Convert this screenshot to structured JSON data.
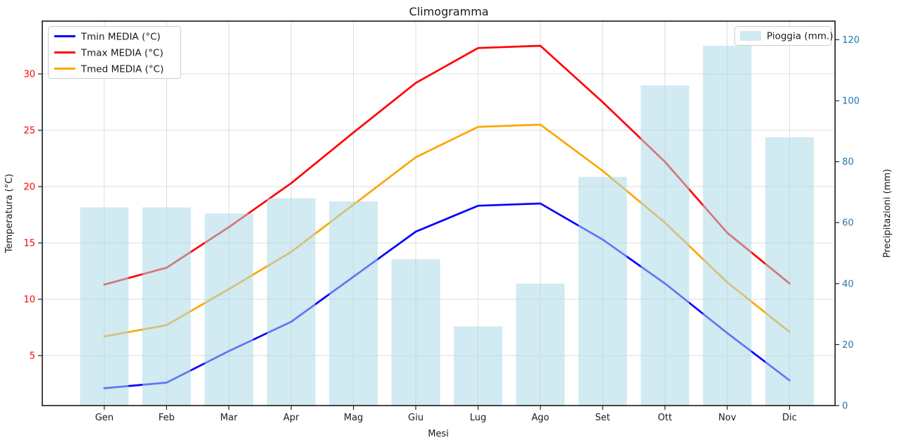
{
  "figure": {
    "title": "Climogramma",
    "background": "#ffffff",
    "plot_border_color": "#1a1a1a",
    "grid_color": "#dcdcdc"
  },
  "chart_data": {
    "type": "climograph line+bar combo",
    "categories": [
      "Gen",
      "Feb",
      "Mar",
      "Apr",
      "Mag",
      "Giu",
      "Lug",
      "Ago",
      "Set",
      "Ott",
      "Nov",
      "Dic"
    ],
    "series": [
      {
        "name": "Tmin MEDIA (°C)",
        "type": "line",
        "axis": "left",
        "color": "#0000ff",
        "values": [
          2.1,
          2.6,
          5.4,
          8.0,
          12.0,
          16.0,
          18.3,
          18.5,
          15.3,
          11.4,
          7.0,
          2.8
        ]
      },
      {
        "name": "Tmax MEDIA (°C)",
        "type": "line",
        "axis": "left",
        "color": "#ff0000",
        "values": [
          11.3,
          12.8,
          16.4,
          20.3,
          24.8,
          29.2,
          32.3,
          32.5,
          27.5,
          22.2,
          15.9,
          11.4
        ]
      },
      {
        "name": "Tmed MEDIA (°C)",
        "type": "line",
        "axis": "left",
        "color": "#ffa500",
        "values": [
          6.7,
          7.7,
          10.9,
          14.2,
          18.4,
          22.6,
          25.3,
          25.5,
          21.4,
          16.8,
          11.5,
          7.1
        ]
      },
      {
        "name": "Pioggia (mm.)",
        "type": "bar",
        "axis": "right",
        "color": "#add8e6",
        "opacity": 0.55,
        "values": [
          65,
          65,
          63,
          68,
          67,
          48,
          26,
          40,
          75,
          105,
          118,
          88
        ]
      }
    ],
    "x_axis": {
      "label": "Mesi",
      "tick_color": "#1a1a1a"
    },
    "left_axis": {
      "label": "Temperatura (°C)",
      "ticks": [
        5,
        10,
        15,
        20,
        25,
        30
      ],
      "tick_color": "#ff0000",
      "range": [
        0.6,
        34.7
      ]
    },
    "right_axis": {
      "label": "Precipitazioni (mm)",
      "ticks": [
        0,
        20,
        40,
        60,
        80,
        100,
        120
      ],
      "tick_color": "#1f77b4",
      "range": [
        0,
        126.2
      ]
    },
    "grid": true,
    "legend_temperature_position": "upper left",
    "legend_rain_position": "upper right"
  }
}
